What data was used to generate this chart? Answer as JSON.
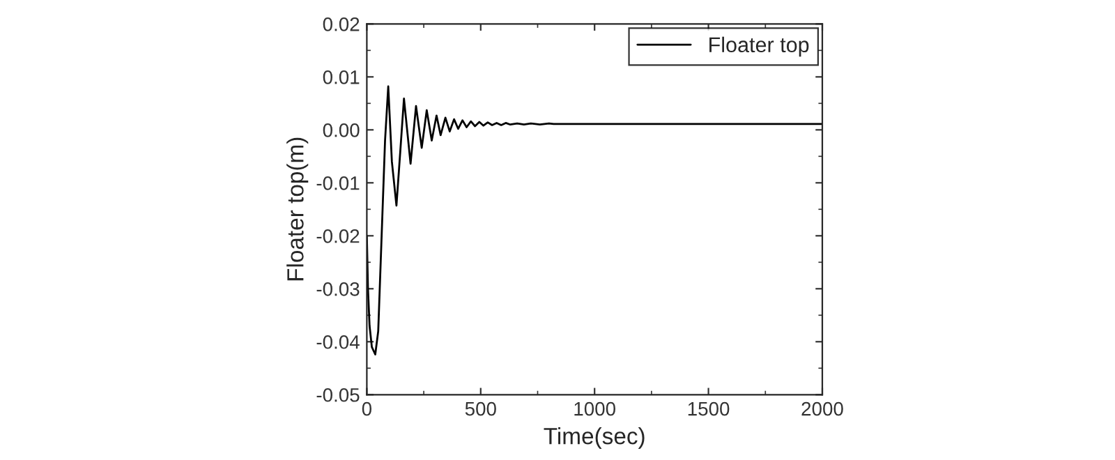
{
  "chart_data": {
    "type": "line",
    "xlabel": "Time(sec)",
    "ylabel": "Floater top(m)",
    "xlim": [
      0,
      2000
    ],
    "xticks": [
      0,
      500,
      1000,
      1500,
      2000
    ],
    "ylim": [
      -0.05,
      0.02
    ],
    "yticks": [
      {
        "value": -0.05,
        "label": "-0.05"
      },
      {
        "value": -0.04,
        "label": "-0.04"
      },
      {
        "value": -0.03,
        "label": "-0.03"
      },
      {
        "value": -0.02,
        "label": "-0.02"
      },
      {
        "value": -0.01,
        "label": "-0.01"
      },
      {
        "value": 0,
        "label": "0.00"
      },
      {
        "value": 0.01,
        "label": "0.01"
      },
      {
        "value": 0.02,
        "label": "0.02"
      }
    ],
    "grid": false,
    "legend": "top right",
    "marker": "none",
    "line_style": "solid",
    "series": [
      {
        "name": "Floater top",
        "color": "#000000",
        "x": [
          0,
          5,
          12,
          22,
          37,
          50,
          65,
          80,
          94,
          110,
          130,
          147,
          163,
          192,
          216,
          241,
          263,
          285,
          306,
          324,
          345,
          364,
          383,
          401,
          420,
          438,
          457,
          475,
          494,
          512,
          531,
          550,
          570,
          590,
          610,
          630,
          660,
          690,
          720,
          760,
          800,
          820,
          2000
        ],
        "values": [
          -0.02,
          -0.03,
          -0.037,
          -0.041,
          -0.0424,
          -0.038,
          -0.02,
          -0.002,
          0.0082,
          -0.006,
          -0.0143,
          -0.004,
          0.0059,
          -0.0064,
          0.0045,
          -0.0034,
          0.0037,
          -0.002,
          0.0027,
          -0.001,
          0.0023,
          -0.0003,
          0.002,
          0.0002,
          0.0018,
          0.0005,
          0.0016,
          0.0007,
          0.0015,
          0.0008,
          0.0014,
          0.0009,
          0.0013,
          0.0009,
          0.0013,
          0.001,
          0.0012,
          0.001,
          0.0012,
          0.001,
          0.0012,
          0.0011,
          0.0011
        ]
      }
    ]
  }
}
